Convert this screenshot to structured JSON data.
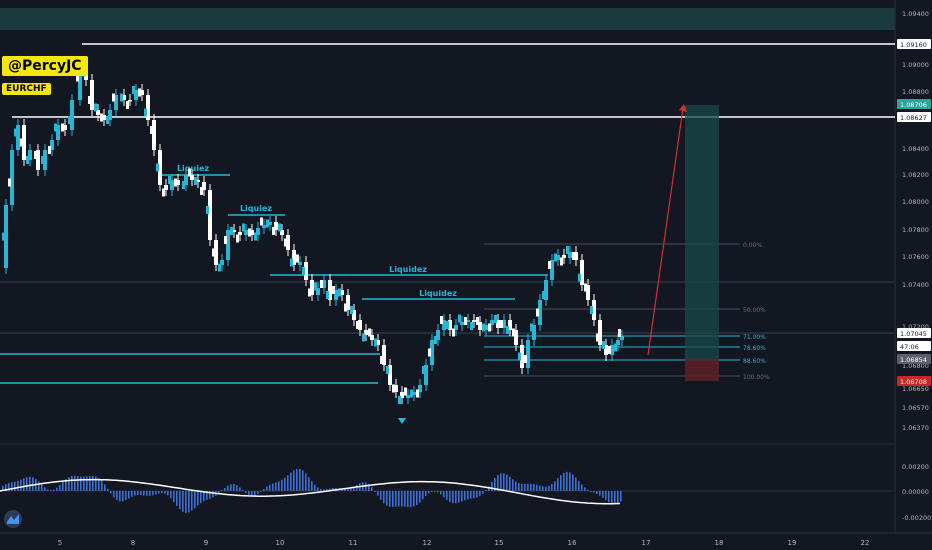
{
  "watermark": "@PercyJC",
  "symbol": "EURCHF",
  "colors": {
    "background": "#131722",
    "grid": "#1e222d",
    "up_candle": "#29b6d6",
    "down_candle": "#ffffff",
    "level_line": "#29b6d6",
    "target_zone": "#1a4a4a",
    "stop_zone": "#5c1f28",
    "arrow": "#d32f2f",
    "macd_hist": "#3c6fd6",
    "macd_line": "#ffffff"
  },
  "price_axis": {
    "ticks": [
      "1.09400",
      "1.09000",
      "1.08800",
      "1.08400",
      "1.08200",
      "1.08000",
      "1.07800",
      "1.07600",
      "1.07400",
      "1.07200",
      "1.06800",
      "1.06650",
      "1.06570",
      "1.06370"
    ],
    "labels": [
      {
        "text": "1.09160",
        "style": "white"
      },
      {
        "text": "1.08706",
        "style": "green"
      },
      {
        "text": "1.08627",
        "style": "white"
      },
      {
        "text": "1.07045",
        "style": "white"
      },
      {
        "text": "47:06",
        "style": "white"
      },
      {
        "text": "1.06854",
        "style": "gray"
      },
      {
        "text": "1.06708",
        "style": "red"
      }
    ]
  },
  "indicator_axis": {
    "ticks": [
      "0.00200",
      "0.00000",
      "-0.00200"
    ]
  },
  "time_axis": {
    "ticks": [
      "5",
      "8",
      "9",
      "10",
      "11",
      "12",
      "15",
      "16",
      "17",
      "18",
      "19",
      "22"
    ]
  },
  "annotations": {
    "liquidity_labels": [
      "Liquiez",
      "Liquiez",
      "Liquidez",
      "Liquidez"
    ],
    "fib_levels": [
      "0.00%",
      "50.00%",
      "71.00%",
      "78.60%",
      "88.60%",
      "100.00%"
    ]
  }
}
